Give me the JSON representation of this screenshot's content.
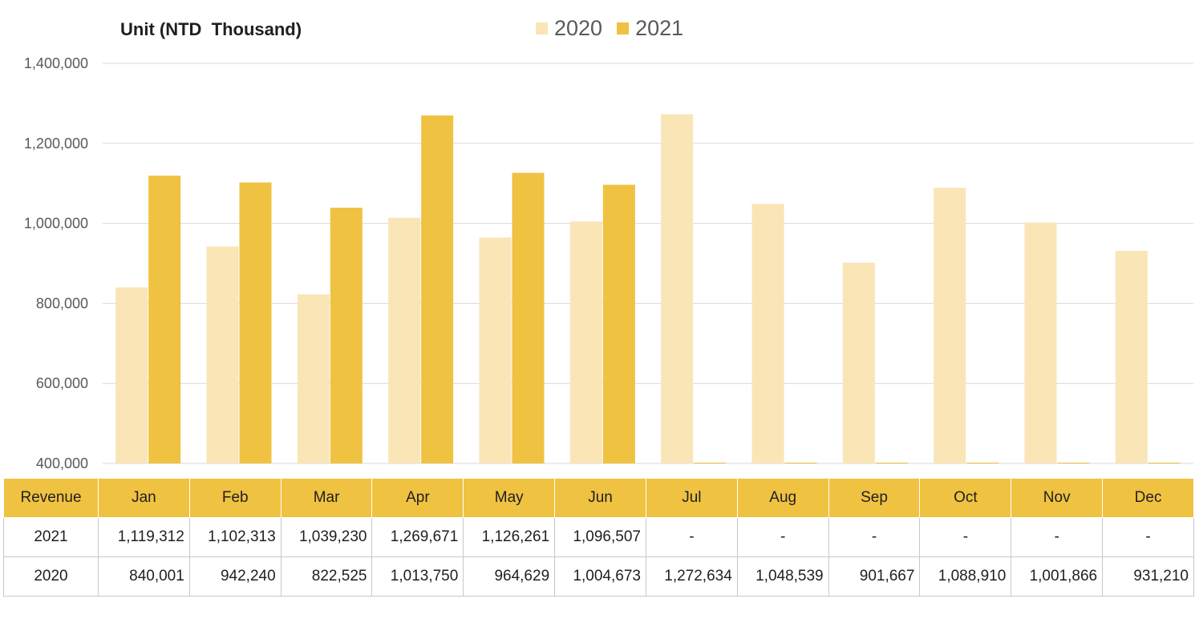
{
  "unit_label": "Unit (NTD  Thousand)",
  "colors": {
    "series_2020": "#f9e5b6",
    "series_2021": "#efc241",
    "header_bg": "#f0c242",
    "grid": "#d9d9d9"
  },
  "chart_data": {
    "type": "bar",
    "categories": [
      "Jan",
      "Feb",
      "Mar",
      "Apr",
      "May",
      "Jun",
      "Jul",
      "Aug",
      "Sep",
      "Oct",
      "Nov",
      "Dec"
    ],
    "series": [
      {
        "name": "2020",
        "values": [
          840001,
          942240,
          822525,
          1013750,
          964629,
          1004673,
          1272634,
          1048539,
          901667,
          1088910,
          1001866,
          931210
        ]
      },
      {
        "name": "2021",
        "values": [
          1119312,
          1102313,
          1039230,
          1269671,
          1126261,
          1096507,
          null,
          null,
          null,
          null,
          null,
          null
        ]
      }
    ],
    "ylim": [
      400000,
      1400000
    ],
    "yticks": [
      "400,000",
      "600,000",
      "800,000",
      "1,000,000",
      "1,200,000",
      "1,400,000"
    ],
    "ytick_values": [
      400000,
      600000,
      800000,
      1000000,
      1200000,
      1400000
    ],
    "grid": true,
    "legend_position": "top-center"
  },
  "table": {
    "header_label": "Revenue",
    "months": [
      "Jan",
      "Feb",
      "Mar",
      "Apr",
      "May",
      "Jun",
      "Jul",
      "Aug",
      "Sep",
      "Oct",
      "Nov",
      "Dec"
    ],
    "rows": [
      {
        "label": "2021",
        "cells": [
          "1,119,312",
          "1,102,313",
          "1,039,230",
          "1,269,671",
          "1,126,261",
          "1,096,507",
          "-",
          "-",
          "-",
          "-",
          "-",
          "-"
        ]
      },
      {
        "label": "2020",
        "cells": [
          "840,001",
          "942,240",
          "822,525",
          "1,013,750",
          "964,629",
          "1,004,673",
          "1,272,634",
          "1,048,539",
          "901,667",
          "1,088,910",
          "1,001,866",
          "931,210"
        ]
      }
    ]
  }
}
